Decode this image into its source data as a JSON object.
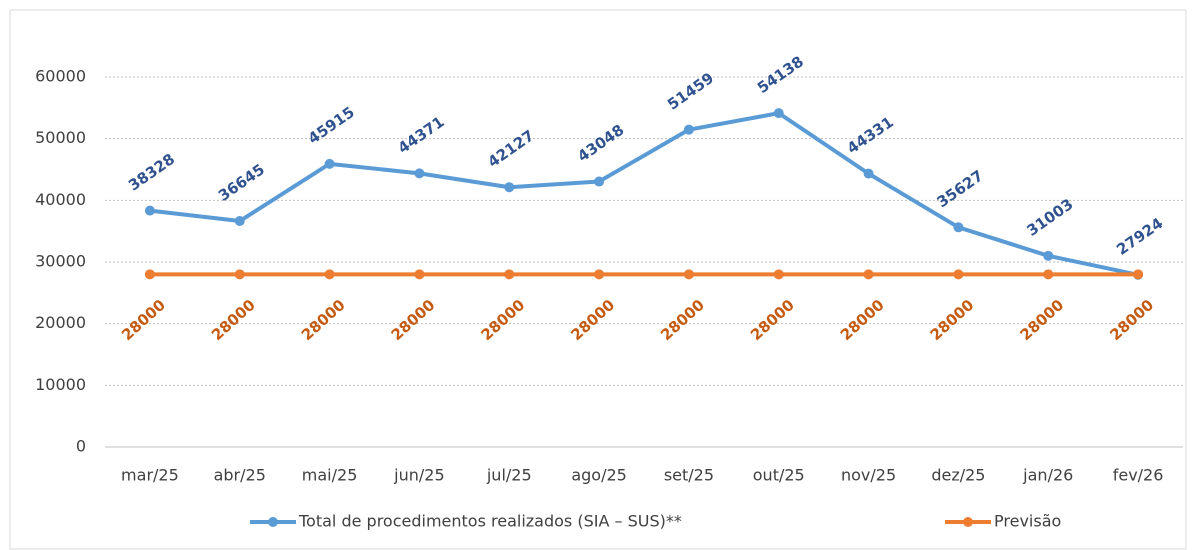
{
  "chart_data": {
    "type": "line",
    "categories": [
      "mar/25",
      "abr/25",
      "mai/25",
      "jun/25",
      "jul/25",
      "ago/25",
      "set/25",
      "out/25",
      "nov/25",
      "dez/25",
      "jan/26",
      "fev/26"
    ],
    "series": [
      {
        "name": "Total de procedimentos realizados (SIA – SUS)**",
        "color": "#5b9bd5",
        "label_color": "#2f528f",
        "values": [
          38328,
          36645,
          45915,
          44371,
          42127,
          43048,
          51459,
          54138,
          44331,
          35627,
          31003,
          27924
        ]
      },
      {
        "name": "Previsão",
        "color": "#ed7d31",
        "label_color": "#c55a11",
        "values": [
          28000,
          28000,
          28000,
          28000,
          28000,
          28000,
          28000,
          28000,
          28000,
          28000,
          28000,
          28000
        ]
      }
    ],
    "ylim": [
      0,
      60000
    ],
    "yticks": [
      0,
      10000,
      20000,
      30000,
      40000,
      50000,
      60000
    ],
    "grid": true,
    "legend": "bottom"
  }
}
